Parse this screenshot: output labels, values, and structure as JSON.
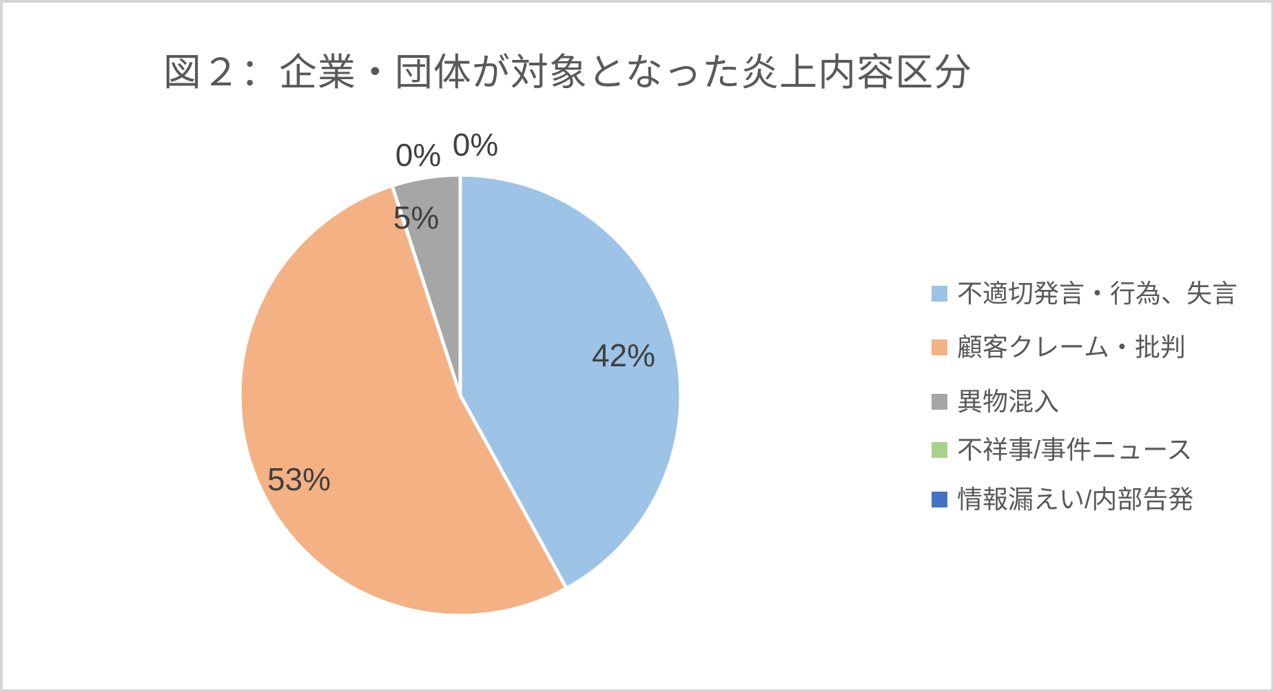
{
  "title": "図２：企業・団体が対象となった炎上内容区分",
  "chart_data": {
    "type": "pie",
    "title": "図２：企業・団体が対象となった炎上内容区分",
    "categories": [
      "不適切発言・行為、失言",
      "顧客クレーム・批判",
      "異物混入",
      "不祥事/事件ニュース",
      "情報漏えい/内部告発"
    ],
    "values": [
      42,
      53,
      5,
      0,
      0
    ],
    "unit": "%",
    "data_labels": [
      "42%",
      "53%",
      "5%",
      "0%",
      "0%"
    ],
    "colors": [
      "#9dc3e6",
      "#f4b183",
      "#a6a6a6",
      "#a9d18e",
      "#4472c4"
    ],
    "start_angle_deg": 0,
    "direction": "clockwise",
    "slice_border_color": "#ffffff",
    "legend_position": "right",
    "title_color": "#595959",
    "label_color": "#404040",
    "legend_text_color": "#595959"
  },
  "frame": {
    "border_color": "#d6d6d6",
    "background": "#ffffff"
  }
}
